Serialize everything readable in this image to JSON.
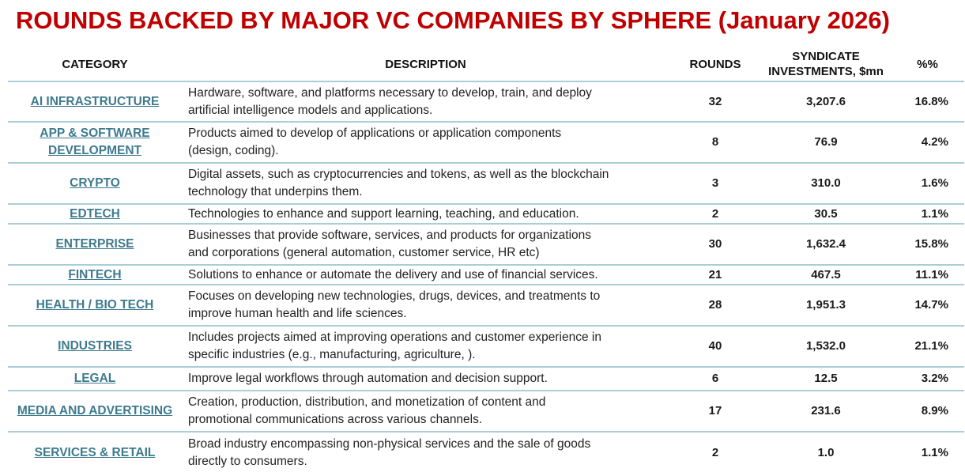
{
  "title": "ROUNDS BACKED BY MAJOR VC COMPANIES BY SPHERE (January 2026)",
  "headers": {
    "category": "CATEGORY",
    "description": "DESCRIPTION",
    "rounds": "ROUNDS",
    "syndicate_line1": "SYNDICATE",
    "syndicate_line2": "INVESTMENTS, $mn",
    "percent": "%%"
  },
  "rows": [
    {
      "category": "AI INFRASTRUCTURE",
      "description_line1": "Hardware, software, and platforms necessary to develop, train, and deploy",
      "description_line2": "artificial intelligence models and applications.",
      "rounds": "32",
      "syndicate": "3,207.6",
      "percent": "16.8%"
    },
    {
      "category_line1": "APP & SOFTWARE",
      "category_line2": "DEVELOPMENT",
      "description_line1": "Products aimed to develop of applications or application components",
      "description_line2": "(design, coding).",
      "rounds": "8",
      "syndicate": "76.9",
      "percent": "4.2%"
    },
    {
      "category": "CRYPTO",
      "description_line1": "Digital assets, such as cryptocurrencies and tokens, as well as the blockchain",
      "description_line2": "technology that underpins them.",
      "rounds": "3",
      "syndicate": "310.0",
      "percent": "1.6%"
    },
    {
      "category": "EDTECH",
      "description_line1": "Technologies to enhance and support learning, teaching, and education.",
      "rounds": "2",
      "syndicate": "30.5",
      "percent": "1.1%"
    },
    {
      "category": "ENTERPRISE",
      "description_line1": "Businesses that provide software, services, and products for organizations",
      "description_line2": "and corporations (general automation, customer service, HR etc)",
      "rounds": "30",
      "syndicate": "1,632.4",
      "percent": "15.8%"
    },
    {
      "category": "FINTECH",
      "description_line1": "Solutions to enhance or automate the delivery and use of financial services.",
      "rounds": "21",
      "syndicate": "467.5",
      "percent": "11.1%"
    },
    {
      "category": "HEALTH / BIO TECH",
      "description_line1": "Focuses on developing new technologies, drugs, devices, and treatments to",
      "description_line2": "improve human health and life sciences.",
      "rounds": "28",
      "syndicate": "1,951.3",
      "percent": "14.7%"
    },
    {
      "category": "INDUSTRIES",
      "description_line1": "Includes projects aimed at improving operations and customer experience in",
      "description_line2": "specific industries (e.g., manufacturing, agriculture, ).",
      "rounds": "40",
      "syndicate": "1,532.0",
      "percent": "21.1%"
    },
    {
      "category": "LEGAL",
      "description_line1": "Improve legal workflows through automation and decision support.",
      "rounds": "6",
      "syndicate": "12.5",
      "percent": "3.2%"
    },
    {
      "category": "MEDIA AND ADVERTISING",
      "description_line1": "Creation, production, distribution, and monetization of content and",
      "description_line2": "promotional communications across various channels.",
      "rounds": "17",
      "syndicate": "231.6",
      "percent": "8.9%"
    },
    {
      "category": "SERVICES & RETAIL",
      "description_line1": "Broad industry encompassing non-physical services and the sale of goods",
      "description_line2": "directly to consumers.",
      "rounds": "2",
      "syndicate": "1.0",
      "percent": "1.1%"
    }
  ],
  "colors": {
    "title": "#c00000",
    "category_link": "#3d7a8e",
    "divider": "#a9cdd9"
  }
}
